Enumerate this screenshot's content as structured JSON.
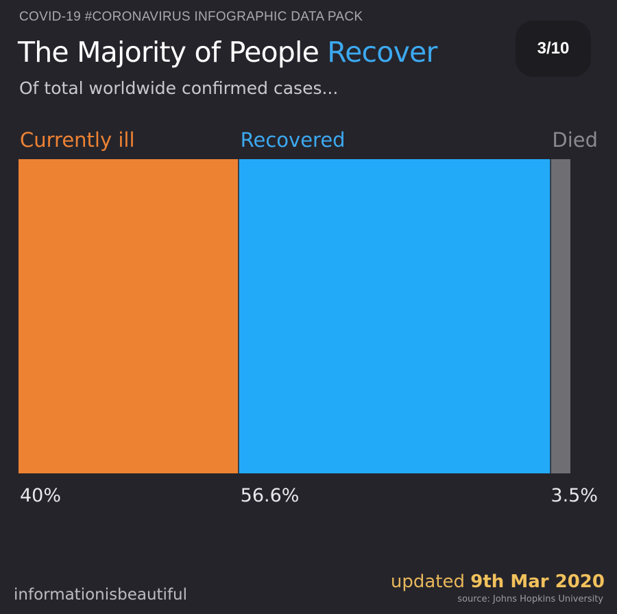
{
  "header": {
    "kicker": "COVID-19 #CORONAVIRUS INFOGRAPHIC DATA PACK",
    "title_main": "The Majority of People ",
    "title_accent": "Recover",
    "subtitle": "Of total worldwide confirmed cases...",
    "page_indicator": "3/10"
  },
  "footer": {
    "brand": "informationisbeautiful",
    "updated_prefix": "updated ",
    "updated_date": "9th Mar 2020",
    "source": "source: Johns Hopkins University"
  },
  "colors": {
    "background": "#25242b",
    "accent": "#3ca9f0"
  },
  "chart_data": {
    "type": "bar",
    "orientation": "horizontal-stacked-100",
    "title": "The Majority of People Recover",
    "subtitle": "Of total worldwide confirmed cases...",
    "xlabel": "",
    "ylabel": "",
    "categories": [
      "Currently ill",
      "Recovered",
      "Died"
    ],
    "values": [
      40,
      56.6,
      3.5
    ],
    "value_labels": [
      "40%",
      "56.6%",
      "3.5%"
    ],
    "unit": "%",
    "colors": [
      "#ee8233",
      "#22aaf9",
      "#6f6f73"
    ],
    "label_colors": [
      "#ee8233",
      "#3ca9f0",
      "#8a8a8e"
    ],
    "grid": false,
    "legend": "none"
  }
}
